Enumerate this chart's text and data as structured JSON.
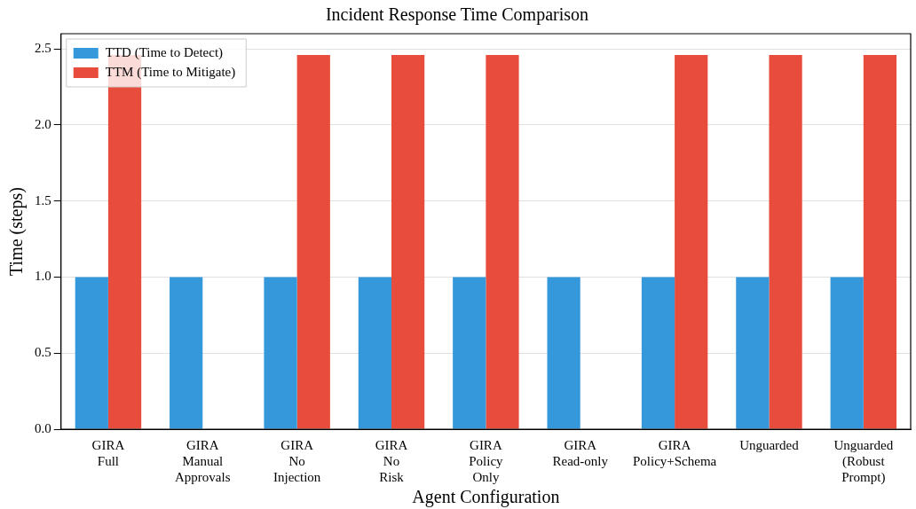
{
  "chart_data": {
    "type": "bar",
    "title": "Incident Response Time Comparison",
    "xlabel": "Agent Configuration",
    "ylabel": "Time (steps)",
    "categories": [
      "GIRA\nFull",
      "GIRA\nManual\nApprovals",
      "GIRA\nNo\nInjection",
      "GIRA\nNo\nRisk",
      "GIRA\nPolicy\nOnly",
      "GIRA\nRead-only",
      "GIRA\nPolicy+Schema",
      "Unguarded",
      "Unguarded\n(Robust\nPrompt)"
    ],
    "series": [
      {
        "name": "TTD (Time to Detect)",
        "color": "#3498db",
        "values": [
          1,
          1,
          1,
          1,
          1,
          1,
          1,
          1,
          1
        ]
      },
      {
        "name": "TTM (Time to Mitigate)",
        "color": "#e74c3c",
        "values": [
          2.46,
          null,
          2.46,
          2.46,
          2.46,
          null,
          2.46,
          2.46,
          2.46
        ]
      }
    ],
    "ylim": [
      0,
      2.6
    ],
    "yticks": [
      {
        "value": 0,
        "label": "0.0"
      },
      0.5,
      {
        "value": 1,
        "label": "1.0"
      },
      1.5,
      {
        "value": 2,
        "label": "2.0"
      },
      2.5
    ],
    "grid": "y",
    "legend": "top left"
  }
}
